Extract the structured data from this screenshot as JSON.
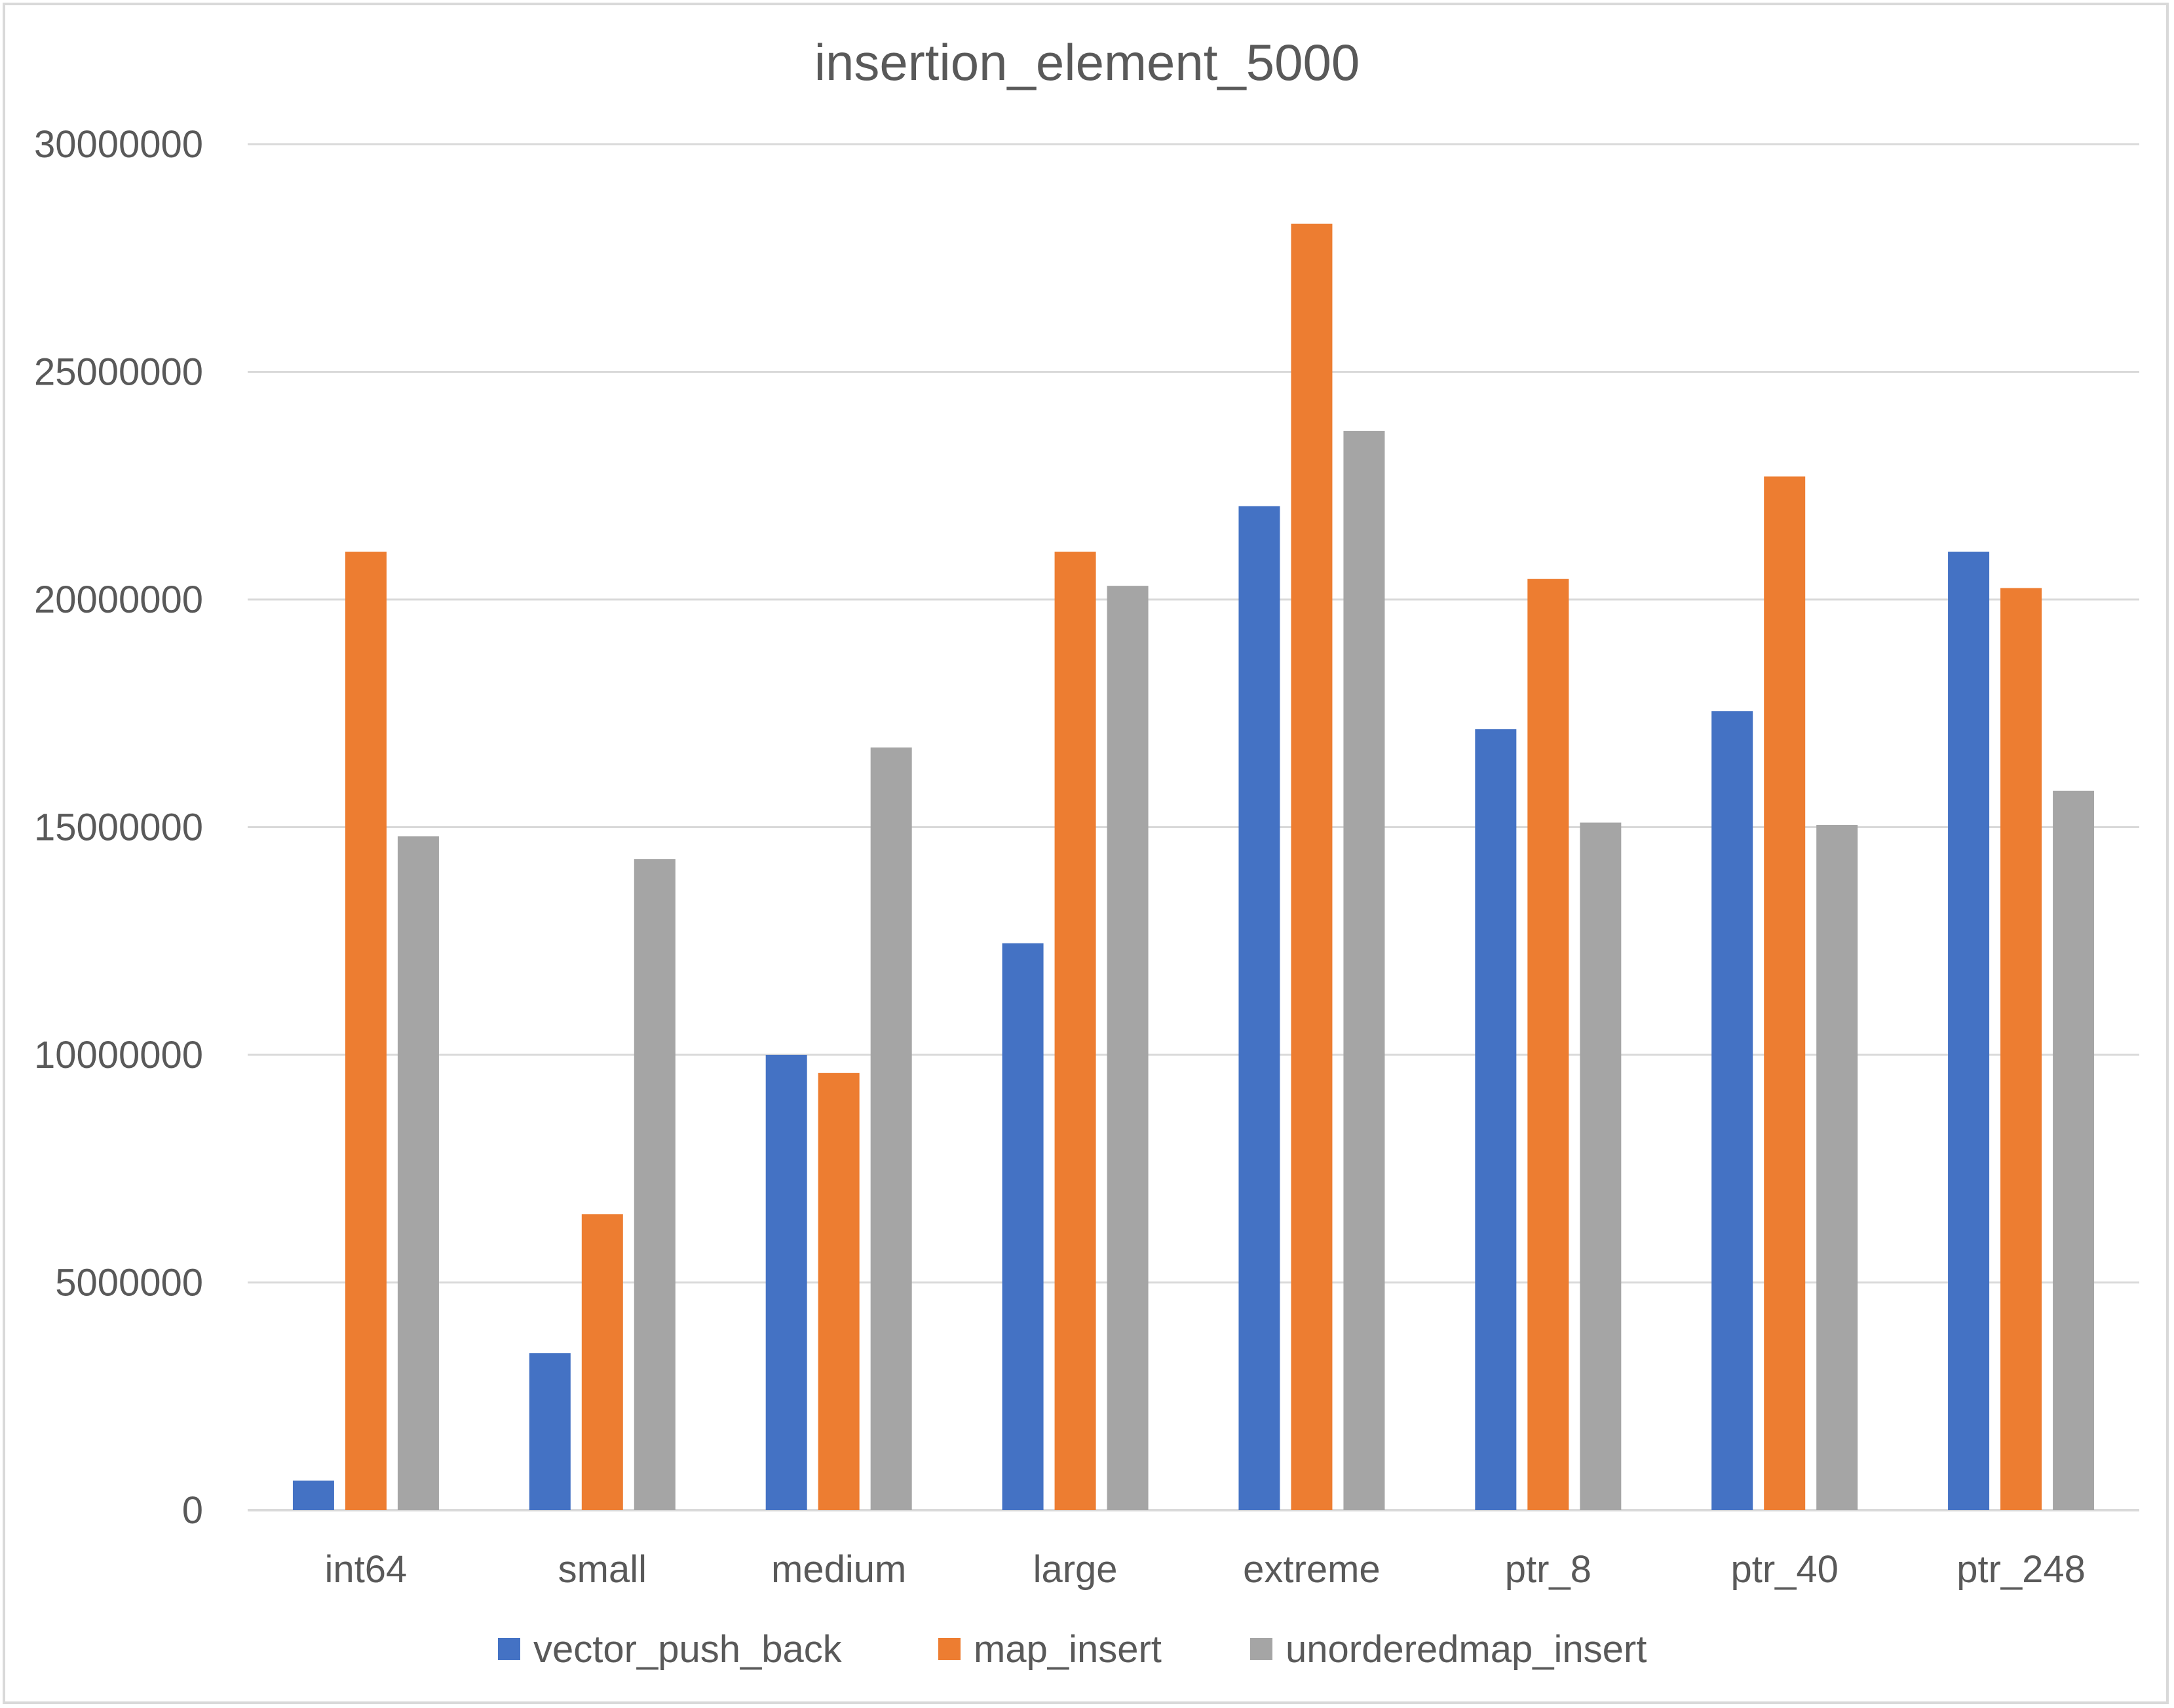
{
  "chart_data": {
    "type": "bar",
    "title": "insertion_element_5000",
    "xlabel": "",
    "ylabel": "",
    "categories": [
      "int64",
      "small",
      "medium",
      "large",
      "extreme",
      "ptr_8",
      "ptr_40",
      "ptr_248"
    ],
    "series": [
      {
        "name": "vector_push_back",
        "color": "#4472c4",
        "values": [
          650000,
          3450000,
          10000000,
          12450000,
          22050000,
          17150000,
          17550000,
          21050000
        ]
      },
      {
        "name": "map_insert",
        "color": "#ed7d31",
        "values": [
          21050000,
          6500000,
          9600000,
          21050000,
          28250000,
          20450000,
          22700000,
          20250000
        ]
      },
      {
        "name": "unorderedmap_insert",
        "color": "#a5a5a5",
        "values": [
          14800000,
          14300000,
          16750000,
          20300000,
          23700000,
          15100000,
          15050000,
          15800000
        ]
      }
    ],
    "ylim": [
      0,
      30000000
    ],
    "yticks": [
      "0",
      "5000000",
      "10000000",
      "15000000",
      "20000000",
      "25000000",
      "30000000"
    ],
    "ytick_values": [
      0,
      5000000,
      10000000,
      15000000,
      20000000,
      25000000,
      30000000
    ],
    "grid": true,
    "legend_position": "bottom",
    "gridline_color": "#d9d9d9"
  }
}
